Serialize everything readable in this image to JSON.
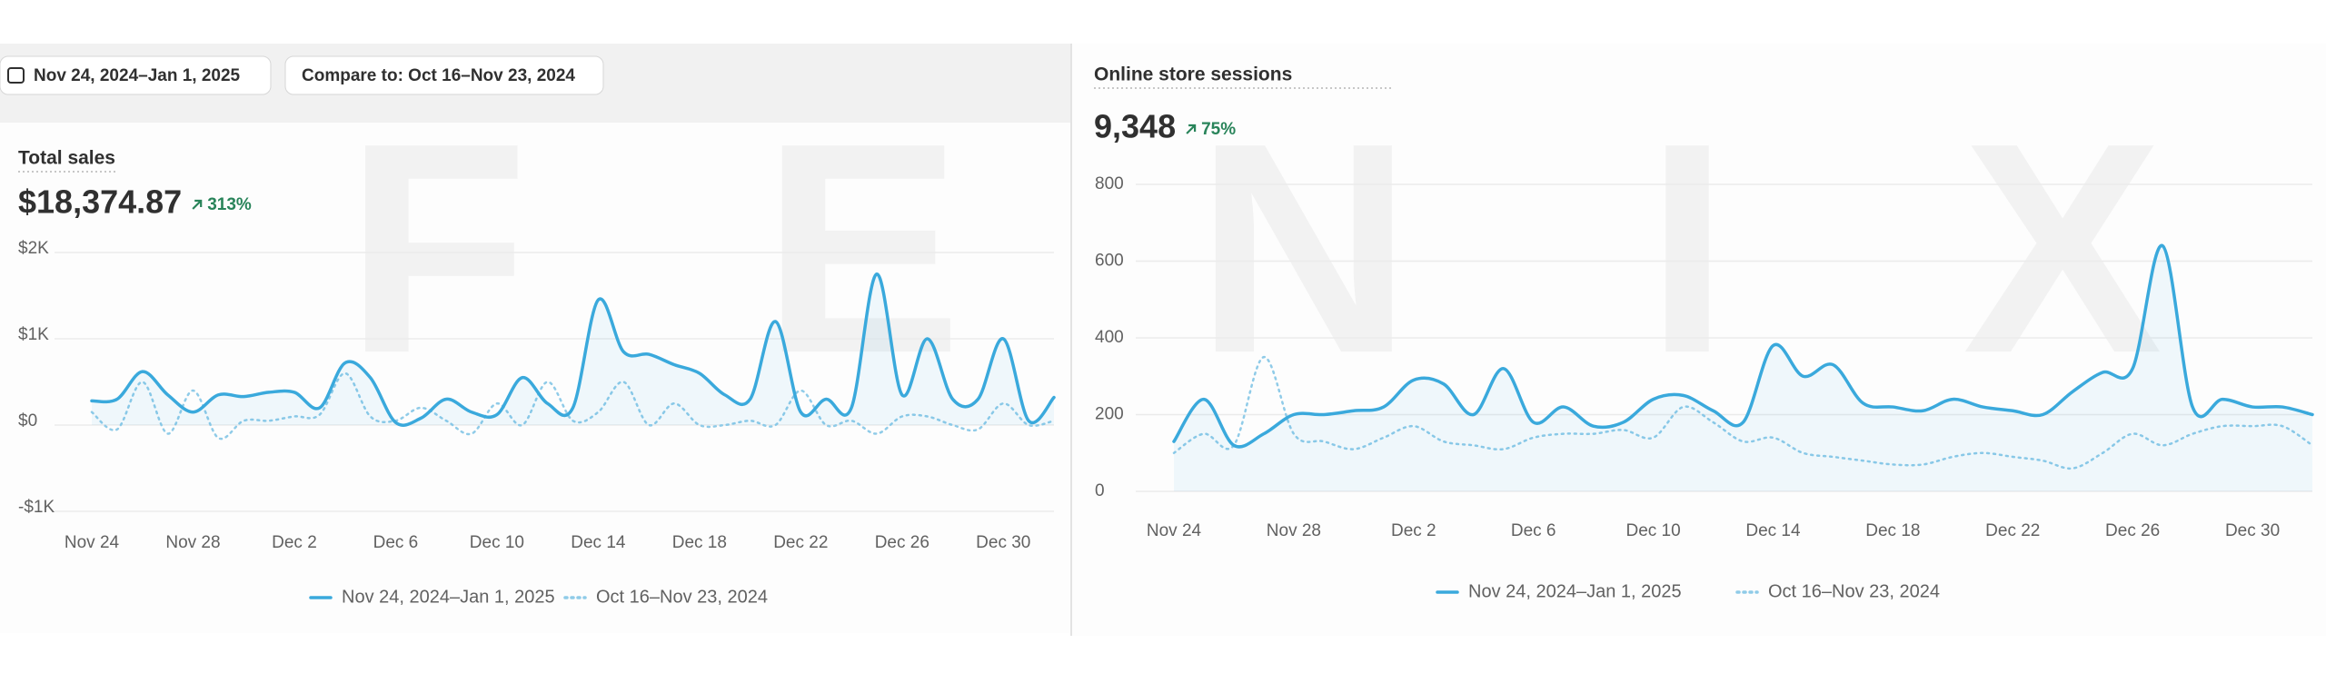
{
  "header": {
    "date_range": "Nov 24, 2024–Jan 1, 2025",
    "compare": "Compare to: Oct 16–Nov 23, 2024"
  },
  "watermark": "FENIX",
  "chart_data": [
    {
      "type": "line",
      "title": "Total sales",
      "metric": "$18,374.87",
      "change": "313%",
      "categories": [
        "Nov 24",
        null,
        null,
        null,
        "Nov 28",
        null,
        null,
        null,
        "Dec 2",
        null,
        null,
        null,
        "Dec 6",
        null,
        null,
        null,
        "Dec 10",
        null,
        null,
        null,
        "Dec 14",
        null,
        null,
        null,
        "Dec 18",
        null,
        null,
        null,
        "Dec 22",
        null,
        null,
        null,
        "Dec 26",
        null,
        null,
        null,
        "Dec 30",
        null,
        null
      ],
      "series": [
        {
          "name": "Nov 24, 2024–Jan 1, 2025",
          "color": "#3aa9dc",
          "values": [
            280,
            300,
            620,
            350,
            150,
            350,
            330,
            380,
            380,
            200,
            720,
            550,
            30,
            80,
            300,
            150,
            120,
            550,
            250,
            200,
            1450,
            850,
            820,
            700,
            600,
            350,
            300,
            1200,
            150,
            300,
            200,
            1750,
            350,
            1000,
            300,
            300,
            1000,
            50,
            320
          ]
        },
        {
          "name": "Oct 16–Nov 23, 2024",
          "color": "#8fcbe8",
          "values": [
            150,
            -50,
            500,
            -100,
            400,
            -150,
            50,
            50,
            100,
            120,
            600,
            100,
            50,
            200,
            50,
            -100,
            250,
            0,
            500,
            50,
            150,
            500,
            0,
            250,
            0,
            0,
            50,
            0,
            400,
            0,
            50,
            -100,
            100,
            100,
            0,
            -50,
            250,
            0,
            50
          ]
        }
      ],
      "ylim": [
        -1000,
        2000
      ],
      "yticks": [
        {
          "value": 2000,
          "label": "$2K"
        },
        {
          "value": 1000,
          "label": "$1K"
        },
        {
          "value": 0,
          "label": "$0"
        },
        {
          "value": -1000,
          "label": "-$1K"
        }
      ],
      "grid": true,
      "legend": "bottom"
    },
    {
      "type": "line",
      "title": "Online store sessions",
      "metric": "9,348",
      "change": "75%",
      "categories": [
        "Nov 24",
        null,
        null,
        null,
        "Nov 28",
        null,
        null,
        null,
        "Dec 2",
        null,
        null,
        null,
        "Dec 6",
        null,
        null,
        null,
        "Dec 10",
        null,
        null,
        null,
        "Dec 14",
        null,
        null,
        null,
        "Dec 18",
        null,
        null,
        null,
        "Dec 22",
        null,
        null,
        null,
        "Dec 26",
        null,
        null,
        null,
        "Dec 30",
        null,
        null
      ],
      "series": [
        {
          "name": "Nov 24, 2024–Jan 1, 2025",
          "color": "#3aa9dc",
          "values": [
            130,
            240,
            120,
            150,
            200,
            200,
            210,
            220,
            290,
            280,
            200,
            320,
            180,
            220,
            170,
            180,
            240,
            250,
            210,
            180,
            380,
            300,
            330,
            230,
            220,
            210,
            240,
            220,
            210,
            200,
            260,
            310,
            320,
            640,
            220,
            240,
            220,
            220,
            200
          ]
        },
        {
          "name": "Oct 16–Nov 23, 2024",
          "color": "#8fcbe8",
          "values": [
            100,
            150,
            120,
            350,
            150,
            130,
            110,
            140,
            170,
            130,
            120,
            110,
            140,
            150,
            150,
            160,
            140,
            220,
            180,
            130,
            140,
            100,
            90,
            80,
            70,
            70,
            90,
            100,
            90,
            80,
            60,
            100,
            150,
            120,
            150,
            170,
            170,
            170,
            120
          ]
        }
      ],
      "ylim": [
        0,
        800
      ],
      "yticks": [
        0,
        200,
        400,
        600,
        800
      ],
      "grid": true,
      "legend": "bottom"
    }
  ]
}
